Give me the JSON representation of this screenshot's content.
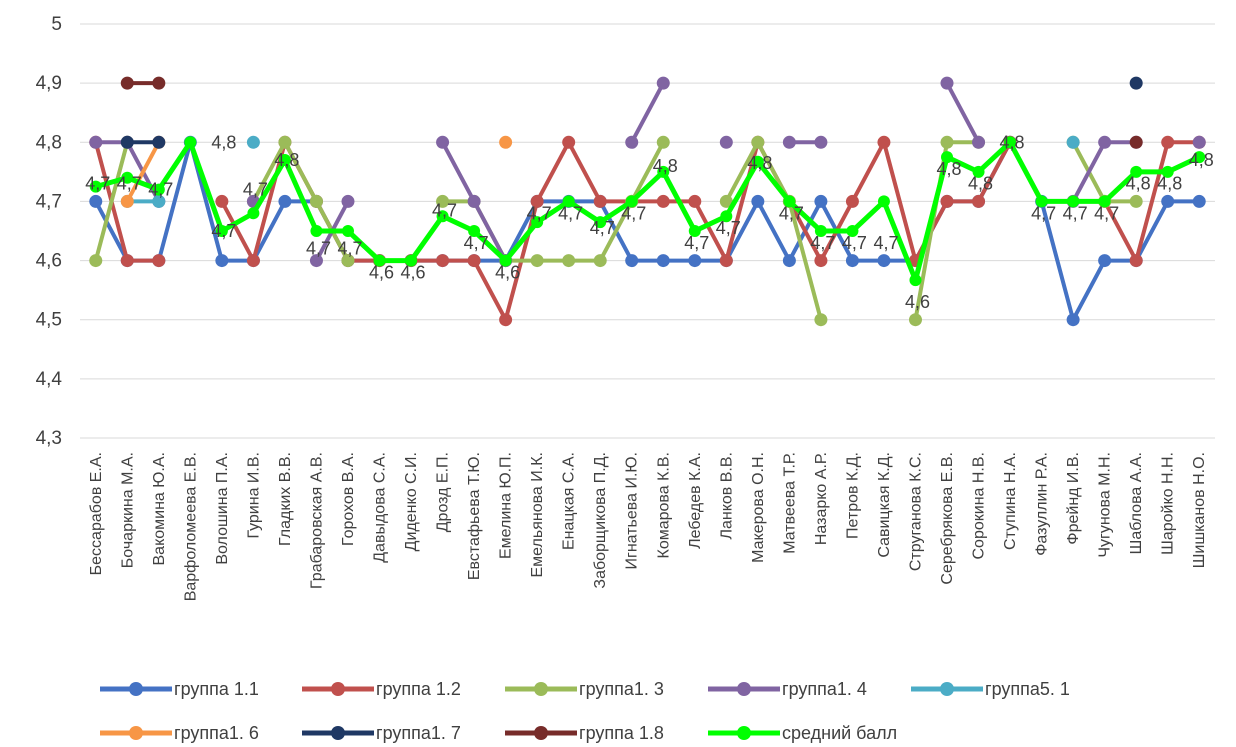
{
  "chart_data": {
    "type": "line",
    "title": "",
    "xlabel": "",
    "ylabel": "",
    "ylim": [
      4.3,
      5.0
    ],
    "ytick_step": 0.1,
    "ytick_labels": [
      "4,3",
      "4,4",
      "4,5",
      "4,6",
      "4,7",
      "4,8",
      "4,9",
      "5"
    ],
    "grid": "horizontal",
    "legend_position": "bottom",
    "categories": [
      "Бессарабов Е.А.",
      "Бочаркина М.А.",
      "Вакомина Ю.А.",
      "Варфоломеева Е.В.",
      "Волошина П.А.",
      "Гурина И.В.",
      "Гладких В.В.",
      "Грабаровская А.В.",
      "Горохов В.А.",
      "Давыдова С.А.",
      "Диденко С.И.",
      "Дрозд Е.П.",
      "Евстафьева Т.Ю.",
      "Емелина Ю.П.",
      "Емельянова И.К.",
      "Енацкая С.А.",
      "Заборщикова П.Д.",
      "Игнатьева И.Ю.",
      "Комарова К.В.",
      "Лебедев К.А.",
      "Ланков В.В.",
      "Макерова О.Н.",
      "Матвеева Т.Р.",
      "Назарко А.Р.",
      "Петров К.Д.",
      "Савицкая К.Д.",
      "Струганова К.С.",
      "Серебрякова Е.В.",
      "Сорокина Н.В.",
      "Ступина Н.А.",
      "Фазуллин Р.А.",
      "Фрейнд И.В.",
      "Чугунова М.Н.",
      "Шаблова А.А.",
      "Шаройко Н.Н.",
      "Шишканов Н.О."
    ],
    "series": [
      {
        "name": "группа 1.1",
        "color": "#4472C4",
        "marker": true,
        "values": [
          4.7,
          4.6,
          4.6,
          4.8,
          4.6,
          4.6,
          4.7,
          4.7,
          4.6,
          4.6,
          4.6,
          4.6,
          4.6,
          4.6,
          4.7,
          4.7,
          4.7,
          4.6,
          4.6,
          4.6,
          4.6,
          4.7,
          4.6,
          4.7,
          4.6,
          4.6,
          4.6,
          4.7,
          4.7,
          4.8,
          4.7,
          4.5,
          4.6,
          4.6,
          4.7,
          4.7
        ]
      },
      {
        "name": "группа 1.2",
        "color": "#C0504D",
        "marker": true,
        "values": [
          4.8,
          4.6,
          4.6,
          null,
          4.7,
          4.6,
          4.8,
          4.7,
          4.6,
          4.6,
          4.6,
          4.6,
          4.6,
          4.5,
          4.7,
          4.8,
          4.7,
          4.7,
          4.7,
          4.7,
          4.6,
          4.8,
          4.7,
          4.6,
          4.7,
          4.8,
          4.6,
          4.7,
          4.7,
          4.8,
          null,
          null,
          4.7,
          4.6,
          4.8,
          4.8
        ]
      },
      {
        "name": "группа1. 3",
        "color": "#9BBB59",
        "marker": true,
        "values": [
          4.6,
          4.8,
          null,
          null,
          null,
          4.7,
          4.8,
          4.7,
          4.6,
          null,
          null,
          4.7,
          4.7,
          4.6,
          4.6,
          4.6,
          4.6,
          4.7,
          4.8,
          null,
          4.7,
          4.8,
          4.7,
          4.5,
          null,
          null,
          4.5,
          4.8,
          4.8,
          null,
          null,
          4.8,
          4.7,
          4.7,
          null,
          null
        ]
      },
      {
        "name": "группа1. 4",
        "color": "#8064A2",
        "marker": true,
        "values": [
          4.8,
          4.8,
          4.7,
          null,
          null,
          4.7,
          null,
          4.6,
          4.7,
          null,
          null,
          4.8,
          4.7,
          4.6,
          null,
          null,
          null,
          4.8,
          4.9,
          null,
          4.8,
          null,
          4.8,
          4.8,
          null,
          null,
          null,
          4.9,
          4.8,
          null,
          null,
          4.7,
          4.8,
          4.8,
          null,
          4.8
        ]
      },
      {
        "name": "группа5. 1",
        "color": "#4BACC6",
        "marker": true,
        "values": [
          null,
          4.7,
          4.7,
          null,
          null,
          4.8,
          null,
          null,
          null,
          null,
          null,
          null,
          null,
          null,
          null,
          null,
          null,
          null,
          null,
          null,
          null,
          null,
          null,
          null,
          null,
          null,
          null,
          null,
          null,
          null,
          null,
          4.8,
          null,
          null,
          null,
          null
        ]
      },
      {
        "name": "группа1. 6",
        "color": "#F79646",
        "marker": true,
        "values": [
          null,
          4.7,
          4.8,
          null,
          null,
          null,
          null,
          null,
          null,
          null,
          null,
          null,
          null,
          4.8,
          null,
          null,
          null,
          null,
          null,
          null,
          null,
          null,
          null,
          null,
          null,
          null,
          null,
          null,
          null,
          null,
          null,
          null,
          null,
          null,
          null,
          null
        ]
      },
      {
        "name": "группа1. 7",
        "color": "#1F3864",
        "marker": true,
        "values": [
          null,
          4.8,
          4.8,
          null,
          null,
          null,
          null,
          null,
          null,
          null,
          null,
          null,
          null,
          null,
          null,
          null,
          null,
          null,
          null,
          null,
          null,
          null,
          null,
          null,
          null,
          null,
          null,
          null,
          null,
          null,
          null,
          null,
          null,
          4.9,
          null,
          null
        ]
      },
      {
        "name": "группа 1.8",
        "color": "#772C2A",
        "marker": true,
        "values": [
          null,
          4.9,
          4.9,
          null,
          null,
          null,
          null,
          null,
          null,
          null,
          null,
          null,
          null,
          null,
          null,
          null,
          null,
          null,
          null,
          null,
          null,
          null,
          null,
          null,
          null,
          null,
          null,
          null,
          null,
          null,
          null,
          null,
          null,
          4.8,
          null,
          null
        ]
      },
      {
        "name": "средний балл",
        "color": "#00FF00",
        "marker": true,
        "bold": true,
        "values": [
          4.725,
          4.74,
          4.72,
          4.8,
          4.65,
          4.68,
          4.77,
          4.65,
          4.65,
          4.6,
          4.6,
          4.675,
          4.65,
          4.6,
          4.665,
          4.7,
          4.665,
          4.7,
          4.75,
          4.65,
          4.675,
          4.767,
          4.7,
          4.65,
          4.65,
          4.7,
          4.567,
          4.775,
          4.75,
          4.8,
          4.7,
          4.7,
          4.7,
          4.75,
          4.75,
          4.775
        ]
      }
    ],
    "data_labels": [
      {
        "text": "4,7",
        "cat": 1,
        "y": 4.73
      },
      {
        "text": "4,7",
        "cat": 2,
        "y": 4.73
      },
      {
        "text": "4,7",
        "cat": 3,
        "y": 4.72
      },
      {
        "text": "4,8",
        "cat": 5,
        "y": 4.8
      },
      {
        "text": "4,7",
        "cat": 5,
        "y": 4.65
      },
      {
        "text": "4,7",
        "cat": 6,
        "y": 4.72
      },
      {
        "text": "4,8",
        "cat": 7,
        "y": 4.77
      },
      {
        "text": "4,7",
        "cat": 8,
        "y": 4.62
      },
      {
        "text": "4,7",
        "cat": 9,
        "y": 4.62
      },
      {
        "text": "4,6",
        "cat": 10,
        "y": 4.58
      },
      {
        "text": "4,6",
        "cat": 11,
        "y": 4.58
      },
      {
        "text": "4,7",
        "cat": 12,
        "y": 4.685
      },
      {
        "text": "4,7",
        "cat": 13,
        "y": 4.63
      },
      {
        "text": "4,6",
        "cat": 14,
        "y": 4.58
      },
      {
        "text": "4,7",
        "cat": 15,
        "y": 4.68
      },
      {
        "text": "4,7",
        "cat": 16,
        "y": 4.68
      },
      {
        "text": "4,7",
        "cat": 17,
        "y": 4.655
      },
      {
        "text": "4,7",
        "cat": 18,
        "y": 4.68
      },
      {
        "text": "4,8",
        "cat": 19,
        "y": 4.76
      },
      {
        "text": "4,7",
        "cat": 20,
        "y": 4.63
      },
      {
        "text": "4,7",
        "cat": 21,
        "y": 4.655
      },
      {
        "text": "4,8",
        "cat": 22,
        "y": 4.765
      },
      {
        "text": "4,7",
        "cat": 23,
        "y": 4.68
      },
      {
        "text": "4,7",
        "cat": 24,
        "y": 4.63
      },
      {
        "text": "4,7",
        "cat": 25,
        "y": 4.63
      },
      {
        "text": "4,7",
        "cat": 26,
        "y": 4.63
      },
      {
        "text": "4,6",
        "cat": 27,
        "y": 4.53
      },
      {
        "text": "4,8",
        "cat": 28,
        "y": 4.755
      },
      {
        "text": "4,8",
        "cat": 29,
        "y": 4.73
      },
      {
        "text": "4,8",
        "cat": 30,
        "y": 4.8
      },
      {
        "text": "4,7",
        "cat": 31,
        "y": 4.68
      },
      {
        "text": "4,7",
        "cat": 32,
        "y": 4.68
      },
      {
        "text": "4,7",
        "cat": 33,
        "y": 4.68
      },
      {
        "text": "4,8",
        "cat": 34,
        "y": 4.73
      },
      {
        "text": "4,8",
        "cat": 35,
        "y": 4.73
      },
      {
        "text": "4,8",
        "cat": 36,
        "y": 4.77
      }
    ]
  }
}
